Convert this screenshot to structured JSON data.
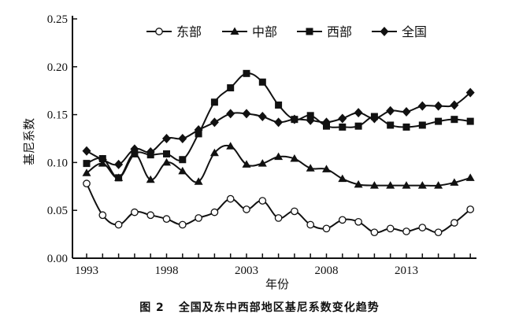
{
  "chart_data": {
    "type": "line",
    "title": "",
    "xlabel": "年份",
    "ylabel": "基尼系数",
    "ylim": [
      0,
      0.25
    ],
    "yticks": [
      "0.00",
      "0.05",
      "0.10",
      "0.15",
      "0.20",
      "0.25"
    ],
    "xtick_labels": [
      "1993",
      "1998",
      "2003",
      "2008",
      "2013"
    ],
    "grid": false,
    "legend_position": "top",
    "x": [
      1993,
      1994,
      1995,
      1996,
      1997,
      1998,
      1999,
      2000,
      2001,
      2002,
      2003,
      2004,
      2005,
      2006,
      2007,
      2008,
      2009,
      2010,
      2011,
      2012,
      2013,
      2014,
      2015,
      2016,
      2017
    ],
    "series": [
      {
        "name": "东部",
        "marker": "circle-open",
        "values": [
          0.078,
          0.045,
          0.035,
          0.048,
          0.045,
          0.041,
          0.035,
          0.042,
          0.048,
          0.062,
          0.051,
          0.06,
          0.042,
          0.049,
          0.035,
          0.031,
          0.04,
          0.038,
          0.027,
          0.031,
          0.028,
          0.032,
          0.027,
          0.037,
          0.051
        ]
      },
      {
        "name": "中部",
        "marker": "triangle",
        "values": [
          0.089,
          0.099,
          0.084,
          0.109,
          0.082,
          0.1,
          0.091,
          0.08,
          0.11,
          0.117,
          0.098,
          0.099,
          0.106,
          0.104,
          0.094,
          0.093,
          0.083,
          0.077,
          0.076,
          0.076,
          0.076,
          0.076,
          0.076,
          0.079,
          0.084
        ]
      },
      {
        "name": "西部",
        "marker": "square",
        "values": [
          0.099,
          0.104,
          0.084,
          0.109,
          0.108,
          0.109,
          0.103,
          0.13,
          0.163,
          0.178,
          0.193,
          0.184,
          0.16,
          0.145,
          0.149,
          0.138,
          0.137,
          0.138,
          0.148,
          0.139,
          0.137,
          0.139,
          0.143,
          0.145,
          0.143
        ]
      },
      {
        "name": "全国",
        "marker": "diamond",
        "values": [
          0.112,
          0.103,
          0.098,
          0.114,
          0.111,
          0.125,
          0.125,
          0.134,
          0.142,
          0.151,
          0.151,
          0.148,
          0.142,
          0.145,
          0.144,
          0.142,
          0.146,
          0.152,
          0.146,
          0.154,
          0.153,
          0.159,
          0.159,
          0.16,
          0.173
        ]
      }
    ],
    "caption_fig": "图 2",
    "caption_text": "全国及东中西部地区基尼系数变化趋势"
  }
}
